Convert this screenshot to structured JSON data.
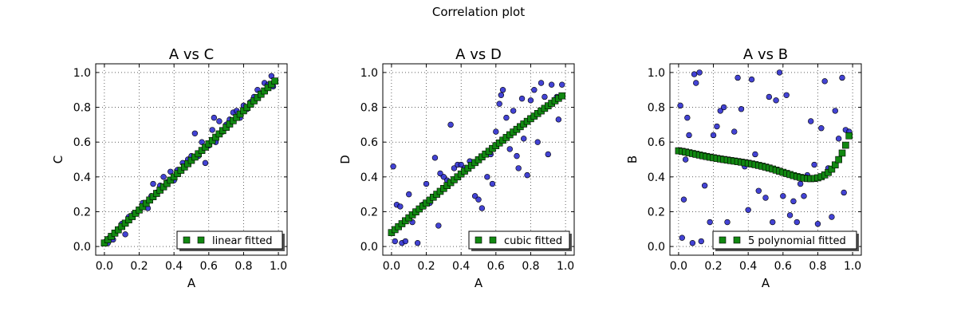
{
  "figure_title": "Correlation plot",
  "chart_data": [
    {
      "type": "scatter",
      "title": "A vs C",
      "xlabel": "A",
      "ylabel": "C",
      "xlim": [
        -0.05,
        1.05
      ],
      "ylim": [
        -0.05,
        1.05
      ],
      "xticks": [
        "0.0",
        "0.2",
        "0.4",
        "0.6",
        "0.8",
        "1.0"
      ],
      "yticks": [
        "0.0",
        "0.2",
        "0.4",
        "0.6",
        "0.8",
        "1.0"
      ],
      "grid": true,
      "legend_position": "bottom-right",
      "fit": {
        "kind": "linear",
        "coefficients": [
          0.02,
          0.95
        ]
      },
      "series": [
        {
          "kind": "points",
          "color": "#2222cc",
          "points": [
            [
              0.01,
              0.03
            ],
            [
              0.02,
              0.02
            ],
            [
              0.03,
              0.05
            ],
            [
              0.04,
              0.06
            ],
            [
              0.05,
              0.04
            ],
            [
              0.06,
              0.08
            ],
            [
              0.08,
              0.1
            ],
            [
              0.1,
              0.13
            ],
            [
              0.12,
              0.07
            ],
            [
              0.14,
              0.17
            ],
            [
              0.17,
              0.19
            ],
            [
              0.2,
              0.21
            ],
            [
              0.22,
              0.25
            ],
            [
              0.25,
              0.22
            ],
            [
              0.27,
              0.29
            ],
            [
              0.28,
              0.36
            ],
            [
              0.3,
              0.31
            ],
            [
              0.32,
              0.35
            ],
            [
              0.34,
              0.4
            ],
            [
              0.36,
              0.37
            ],
            [
              0.38,
              0.43
            ],
            [
              0.4,
              0.38
            ],
            [
              0.42,
              0.44
            ],
            [
              0.45,
              0.48
            ],
            [
              0.48,
              0.5
            ],
            [
              0.5,
              0.52
            ],
            [
              0.52,
              0.65
            ],
            [
              0.54,
              0.52
            ],
            [
              0.56,
              0.6
            ],
            [
              0.58,
              0.48
            ],
            [
              0.6,
              0.58
            ],
            [
              0.62,
              0.67
            ],
            [
              0.63,
              0.74
            ],
            [
              0.64,
              0.6
            ],
            [
              0.66,
              0.72
            ],
            [
              0.68,
              0.66
            ],
            [
              0.7,
              0.7
            ],
            [
              0.72,
              0.73
            ],
            [
              0.74,
              0.77
            ],
            [
              0.76,
              0.78
            ],
            [
              0.78,
              0.74
            ],
            [
              0.8,
              0.81
            ],
            [
              0.82,
              0.79
            ],
            [
              0.84,
              0.83
            ],
            [
              0.86,
              0.86
            ],
            [
              0.88,
              0.9
            ],
            [
              0.9,
              0.88
            ],
            [
              0.92,
              0.94
            ],
            [
              0.94,
              0.93
            ],
            [
              0.96,
              0.98
            ],
            [
              0.97,
              0.92
            ],
            [
              0.98,
              0.95
            ]
          ]
        },
        {
          "kind": "fit",
          "name": "linear fitted",
          "color": "#118811"
        }
      ]
    },
    {
      "type": "scatter",
      "title": "A vs D",
      "xlabel": "A",
      "ylabel": "D",
      "xlim": [
        -0.05,
        1.05
      ],
      "ylim": [
        -0.05,
        1.05
      ],
      "xticks": [
        "0.0",
        "0.2",
        "0.4",
        "0.6",
        "0.8",
        "1.0"
      ],
      "yticks": [
        "0.0",
        "0.2",
        "0.4",
        "0.6",
        "0.8",
        "1.0"
      ],
      "grid": true,
      "legend_position": "bottom-right",
      "fit": {
        "kind": "cubic",
        "coefficients": [
          0.08,
          0.85,
          0.0,
          -0.05
        ]
      },
      "series": [
        {
          "kind": "points",
          "color": "#2222cc",
          "points": [
            [
              0.01,
              0.46
            ],
            [
              0.02,
              0.03
            ],
            [
              0.03,
              0.24
            ],
            [
              0.05,
              0.23
            ],
            [
              0.06,
              0.02
            ],
            [
              0.08,
              0.03
            ],
            [
              0.1,
              0.3
            ],
            [
              0.12,
              0.14
            ],
            [
              0.15,
              0.02
            ],
            [
              0.18,
              0.24
            ],
            [
              0.2,
              0.36
            ],
            [
              0.22,
              0.25
            ],
            [
              0.25,
              0.51
            ],
            [
              0.27,
              0.12
            ],
            [
              0.28,
              0.42
            ],
            [
              0.3,
              0.4
            ],
            [
              0.32,
              0.38
            ],
            [
              0.34,
              0.7
            ],
            [
              0.36,
              0.45
            ],
            [
              0.38,
              0.47
            ],
            [
              0.4,
              0.47
            ],
            [
              0.42,
              0.45
            ],
            [
              0.45,
              0.49
            ],
            [
              0.48,
              0.29
            ],
            [
              0.5,
              0.27
            ],
            [
              0.52,
              0.22
            ],
            [
              0.55,
              0.4
            ],
            [
              0.57,
              0.53
            ],
            [
              0.58,
              0.36
            ],
            [
              0.6,
              0.66
            ],
            [
              0.62,
              0.82
            ],
            [
              0.63,
              0.87
            ],
            [
              0.64,
              0.9
            ],
            [
              0.66,
              0.74
            ],
            [
              0.68,
              0.56
            ],
            [
              0.7,
              0.78
            ],
            [
              0.72,
              0.52
            ],
            [
              0.73,
              0.45
            ],
            [
              0.75,
              0.85
            ],
            [
              0.76,
              0.62
            ],
            [
              0.78,
              0.41
            ],
            [
              0.8,
              0.84
            ],
            [
              0.82,
              0.9
            ],
            [
              0.84,
              0.6
            ],
            [
              0.86,
              0.94
            ],
            [
              0.88,
              0.86
            ],
            [
              0.9,
              0.53
            ],
            [
              0.92,
              0.93
            ],
            [
              0.95,
              0.86
            ],
            [
              0.96,
              0.73
            ],
            [
              0.98,
              0.93
            ]
          ]
        },
        {
          "kind": "fit",
          "name": "cubic fitted",
          "color": "#118811"
        }
      ]
    },
    {
      "type": "scatter",
      "title": "A vs B",
      "xlabel": "A",
      "ylabel": "B",
      "xlim": [
        -0.05,
        1.05
      ],
      "ylim": [
        -0.05,
        1.05
      ],
      "xticks": [
        "0.0",
        "0.2",
        "0.4",
        "0.6",
        "0.8",
        "1.0"
      ],
      "yticks": [
        "0.0",
        "0.2",
        "0.4",
        "0.6",
        "0.8",
        "1.0"
      ],
      "grid": true,
      "legend_position": "bottom-right",
      "fit": {
        "kind": "5 polynomial",
        "coefficients": [
          0.55,
          -0.15,
          -0.9,
          4.8,
          -9.0,
          5.4
        ]
      },
      "series": [
        {
          "kind": "points",
          "color": "#2222cc",
          "points": [
            [
              0.01,
              0.81
            ],
            [
              0.02,
              0.05
            ],
            [
              0.03,
              0.27
            ],
            [
              0.04,
              0.5
            ],
            [
              0.05,
              0.74
            ],
            [
              0.06,
              0.64
            ],
            [
              0.08,
              0.02
            ],
            [
              0.09,
              0.99
            ],
            [
              0.1,
              0.94
            ],
            [
              0.12,
              1.0
            ],
            [
              0.13,
              0.03
            ],
            [
              0.15,
              0.35
            ],
            [
              0.18,
              0.14
            ],
            [
              0.2,
              0.64
            ],
            [
              0.22,
              0.69
            ],
            [
              0.24,
              0.78
            ],
            [
              0.26,
              0.8
            ],
            [
              0.28,
              0.14
            ],
            [
              0.3,
              0.03
            ],
            [
              0.32,
              0.66
            ],
            [
              0.34,
              0.97
            ],
            [
              0.36,
              0.79
            ],
            [
              0.38,
              0.46
            ],
            [
              0.4,
              0.21
            ],
            [
              0.42,
              0.96
            ],
            [
              0.44,
              0.53
            ],
            [
              0.46,
              0.32
            ],
            [
              0.48,
              0.03
            ],
            [
              0.5,
              0.28
            ],
            [
              0.52,
              0.86
            ],
            [
              0.54,
              0.14
            ],
            [
              0.56,
              0.84
            ],
            [
              0.58,
              1.0
            ],
            [
              0.6,
              0.29
            ],
            [
              0.62,
              0.87
            ],
            [
              0.64,
              0.18
            ],
            [
              0.66,
              0.26
            ],
            [
              0.68,
              0.14
            ],
            [
              0.7,
              0.36
            ],
            [
              0.72,
              0.29
            ],
            [
              0.74,
              0.41
            ],
            [
              0.76,
              0.72
            ],
            [
              0.78,
              0.47
            ],
            [
              0.8,
              0.13
            ],
            [
              0.82,
              0.68
            ],
            [
              0.84,
              0.95
            ],
            [
              0.86,
              0.45
            ],
            [
              0.88,
              0.17
            ],
            [
              0.9,
              0.78
            ],
            [
              0.92,
              0.62
            ],
            [
              0.94,
              0.97
            ],
            [
              0.95,
              0.31
            ],
            [
              0.96,
              0.67
            ],
            [
              0.98,
              0.66
            ]
          ]
        },
        {
          "kind": "fit",
          "name": "5 polynomial fitted",
          "color": "#118811"
        }
      ]
    }
  ]
}
